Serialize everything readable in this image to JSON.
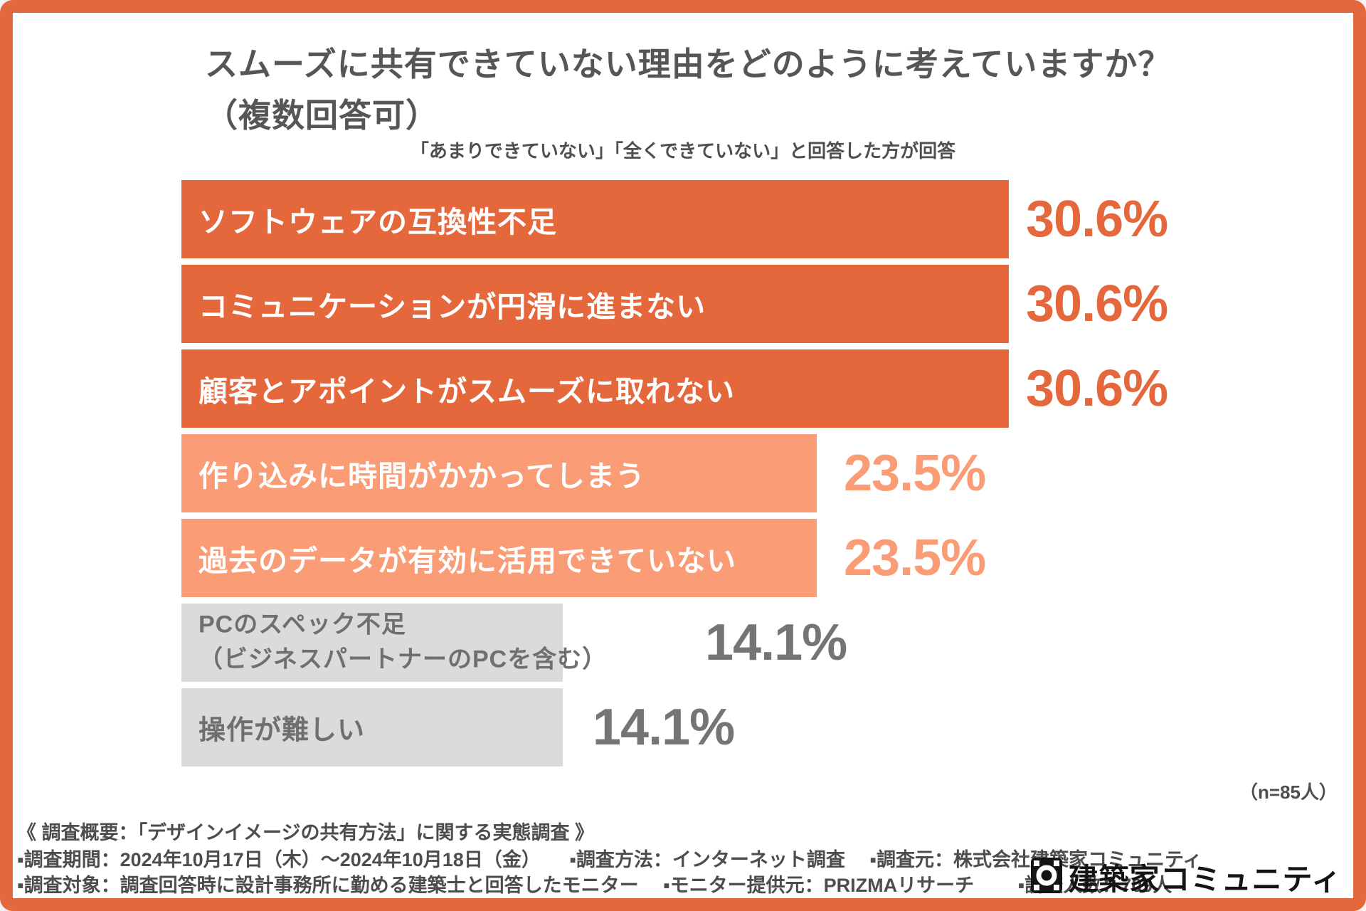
{
  "header": {
    "title_line1": "スムーズに共有できていない理由をどのように考えていますか？",
    "title_line2": "（複数回答可）",
    "subtitle": "「あまりできていない」「全くできていない」と回答した方が回答"
  },
  "chart_data": {
    "type": "bar",
    "orientation": "horizontal",
    "unit": "%",
    "title": "スムーズに共有できていない理由をどのように考えていますか？（複数回答可）",
    "subtitle": "「あまりできていない」「全くできていない」と回答した方が回答",
    "n_label": "（n=85人）",
    "categories": [
      "ソフトウェアの互換性不足",
      "コミュニケーションが円滑に進まない",
      "顧客とアポイントがスムーズに取れない",
      "作り込みに時間がかかってしまう",
      "過去のデータが有効に活用できていない",
      "PCのスペック不足（ビジネスパートナーのPCを含む）",
      "操作が難しい"
    ],
    "values": [
      30.6,
      30.6,
      30.6,
      23.5,
      23.5,
      14.1,
      14.1
    ],
    "xlim": [
      0,
      43
    ],
    "grid": false,
    "legend": false,
    "bars": [
      {
        "label": "ソフトウェアの互換性不足",
        "value": 30.6,
        "value_label": "30.6%",
        "color_key": "orange"
      },
      {
        "label": "コミュニケーションが円滑に進まない",
        "value": 30.6,
        "value_label": "30.6%",
        "color_key": "orange"
      },
      {
        "label": "顧客とアポイントがスムーズに取れない",
        "value": 30.6,
        "value_label": "30.6%",
        "color_key": "orange"
      },
      {
        "label": "作り込みに時間がかかってしまう",
        "value": 23.5,
        "value_label": "23.5%",
        "color_key": "salmon"
      },
      {
        "label": "過去のデータが有効に活用できていない",
        "value": 23.5,
        "value_label": "23.5%",
        "color_key": "salmon"
      },
      {
        "label": "PCのスペック不足\n（ビジネスパートナーのPCを含む）",
        "value": 14.1,
        "value_label": "14.1%",
        "color_key": "gray"
      },
      {
        "label": "操作が難しい",
        "value": 14.1,
        "value_label": "14.1%",
        "color_key": "gray"
      }
    ]
  },
  "footer": {
    "line1": "《 調査概要：「デザインイメージの共有方法」に関する実態調査 》",
    "line2": "▪調査期間：2024年10月17日（木）～2024年10月18日（金）　　▪調査方法：インターネット調査　 ▪調査元：株式会社建築家コミュニティ",
    "line3": "▪調査対象：調査回答時に設計事務所に勤める建築士と回答したモニター　 ▪モニター提供元：PRIZMAリサーチ　　 ▪調査人数：709人",
    "logo_text": "建築家コミュニティ"
  },
  "colors": {
    "accent_orange": "#E5673C",
    "light_salmon": "#FA9C75",
    "gray_bar": "#DBDBDB",
    "gray_text": "#757575",
    "heading_text": "#565656",
    "footer_text": "#4D4D4D"
  }
}
